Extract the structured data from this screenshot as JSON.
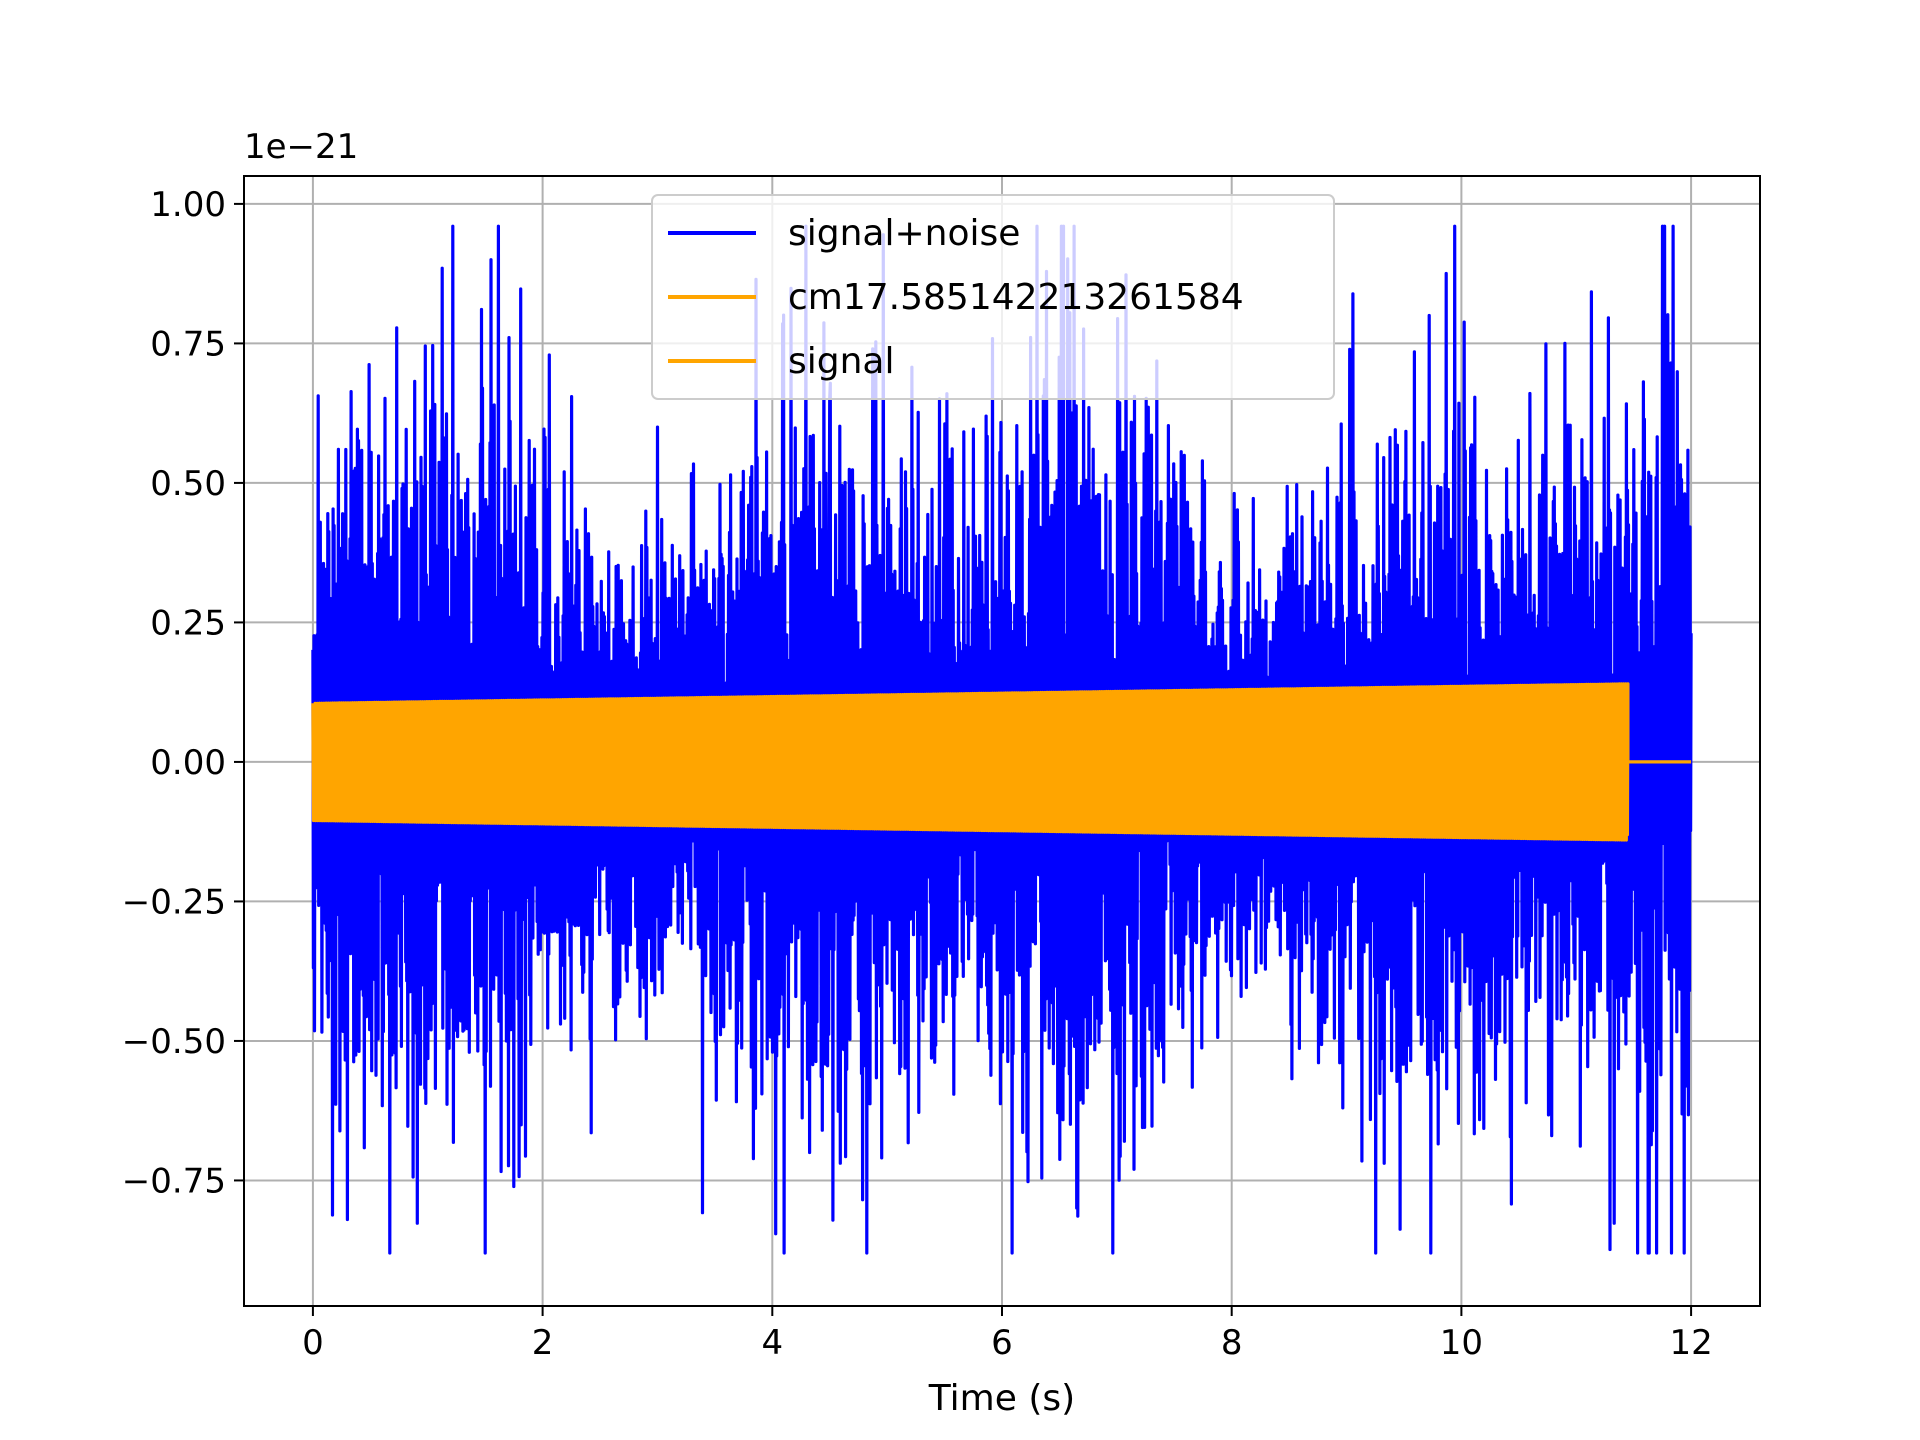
{
  "chart_data": {
    "type": "line",
    "title": "",
    "xlabel": "Time (s)",
    "ylabel": "",
    "y_offset_text": "1e−21",
    "xlim": [
      -0.6,
      12.6
    ],
    "ylim": [
      -0.975,
      1.05
    ],
    "x_ticks": [
      0,
      2,
      4,
      6,
      8,
      10,
      12
    ],
    "x_tick_labels": [
      "0",
      "2",
      "4",
      "6",
      "8",
      "10",
      "12"
    ],
    "y_ticks": [
      -0.75,
      -0.5,
      -0.25,
      0.0,
      0.25,
      0.5,
      0.75,
      1.0
    ],
    "y_tick_labels": [
      "−0.75",
      "−0.50",
      "−0.25",
      "0.00",
      "0.25",
      "0.50",
      "0.75",
      "1.00"
    ],
    "grid": true,
    "legend_position": "top-center",
    "series": [
      {
        "name": "signal+noise",
        "color": "#0000ff",
        "x_range": [
          0,
          12
        ],
        "approx_amplitude_range": [
          -0.88,
          0.96
        ],
        "peak_points": [
          {
            "x": 1.22,
            "y": 0.96
          },
          {
            "x": 1.55,
            "y": 0.9
          },
          {
            "x": 3.0,
            "y": 0.6
          },
          {
            "x": 4.5,
            "y": 0.65
          },
          {
            "x": 9.72,
            "y": 0.8
          },
          {
            "x": 10.9,
            "y": 0.75
          },
          {
            "x": 1.5,
            "y": -0.88
          },
          {
            "x": 0.3,
            "y": -0.82
          },
          {
            "x": 7.15,
            "y": -0.73
          }
        ]
      },
      {
        "name": "cm17.585142213261584",
        "color": "#ffa500",
        "x_range": [
          0,
          11.45
        ],
        "amplitude_start": 0.105,
        "amplitude_end": 0.14
      },
      {
        "name": "signal",
        "color": "#ffa500",
        "x_range": [
          0,
          11.45
        ],
        "amplitude_start": 0.105,
        "amplitude_end": 0.14
      }
    ]
  }
}
